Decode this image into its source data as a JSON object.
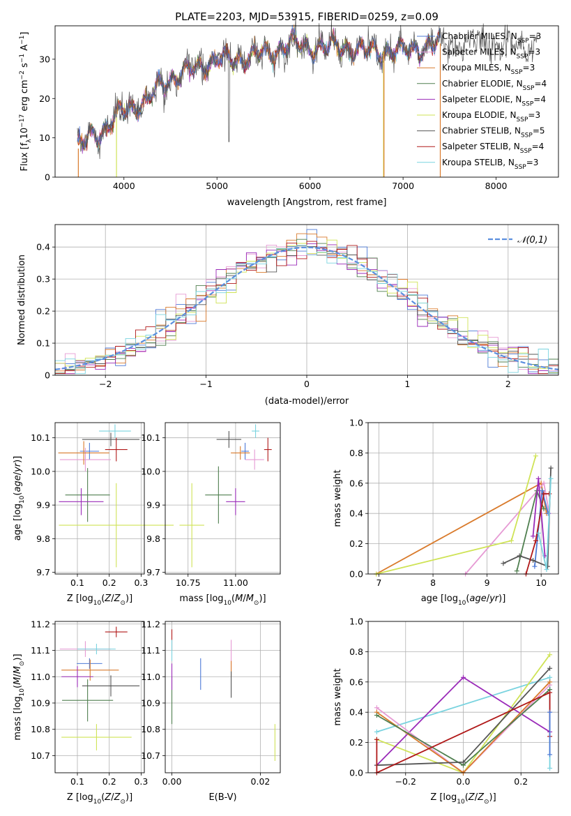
{
  "figure": {
    "title": "PLATE=2203, MJD=53915, FIBERID=0259, z=0.09"
  },
  "chart_data": [
    {
      "id": "spectrum",
      "type": "line",
      "xlabel": "wavelength [Angstrom, rest frame]",
      "ylabel": "Flux [f_λ 10^-17 erg cm^-2 s^-1 A^-1]",
      "xlim": [
        3260,
        8670
      ],
      "ylim": [
        0,
        38.5
      ],
      "xticks": [
        4000,
        5000,
        6000,
        7000,
        8000
      ],
      "yticks": [
        0,
        10,
        20,
        30
      ],
      "legend_position": "upper-right",
      "series": [
        {
          "name": "Chabrier MILES, N_SSP=3",
          "color": "#4c79d6"
        },
        {
          "name": "Salpeter MILES, N_SSP=3",
          "color": "#e69ad4"
        },
        {
          "name": "Kroupa MILES, N_SSP=3",
          "color": "#d97a2b"
        },
        {
          "name": "Chabrier ELODIE, N_SSP=4",
          "color": "#4f7f4f"
        },
        {
          "name": "Salpeter ELODIE, N_SSP=4",
          "color": "#9a2ab8"
        },
        {
          "name": "Kroupa ELODIE, N_SSP=3",
          "color": "#cfe356"
        },
        {
          "name": "Chabrier STELIB, N_SSP=5",
          "color": "#555555"
        },
        {
          "name": "Salpeter STELIB, N_SSP=4",
          "color": "#b01818"
        },
        {
          "name": "Kroupa STELIB, N_SSP=3",
          "color": "#79d3df"
        }
      ],
      "continuum": {
        "x": [
          3500,
          3650,
          3800,
          3950,
          4050,
          4250,
          4400,
          4600,
          4800,
          5000,
          5200,
          5400,
          5600,
          5800,
          6000,
          6200,
          6400,
          6600,
          6800,
          7000,
          7200,
          7400
        ],
        "y": [
          7,
          11,
          12,
          16,
          18,
          19,
          24,
          26,
          28,
          30,
          30,
          31,
          32,
          34,
          33,
          33,
          33,
          32,
          32,
          32,
          33,
          34
        ]
      },
      "data_extent": [
        3500,
        8450
      ],
      "model_extent": [
        3500,
        7400
      ]
    },
    {
      "id": "residuals",
      "type": "histogram",
      "xlabel": "(data-model)/error",
      "ylabel": "Normed distribution",
      "xlim": [
        -2.5,
        2.5
      ],
      "ylim": [
        0,
        0.47
      ],
      "xticks": [
        -2,
        -1,
        0,
        1,
        2
      ],
      "yticks": [
        0,
        0.1,
        0.2,
        0.3,
        0.4
      ],
      "legend_position": "upper-right",
      "reference_curve": {
        "name": "𝒩(0,1)",
        "mean": 0,
        "sigma": 1,
        "color": "#5b8fde"
      },
      "bin_width": 0.1
    },
    {
      "id": "age-vs-Z",
      "type": "errorbar",
      "xlabel": "Z [log10(Z/Z⊙)]",
      "ylabel": "age [log10(age/yr)]",
      "xlim": [
        0.03,
        0.31
      ],
      "ylim": [
        9.695,
        10.145
      ],
      "xticks": [
        0.1,
        0.2,
        0.3
      ],
      "yticks": [
        9.7,
        9.8,
        9.9,
        10.0,
        10.1
      ],
      "xticklabels": [
        "0.1",
        "0.2",
        "0.3"
      ],
      "yticklabels": [
        "9.7",
        "9.8",
        "9.9",
        "10.0",
        "10.1"
      ],
      "points": [
        {
          "series": "Chabrier MILES",
          "x": 0.138,
          "y": 10.06,
          "xerr": 0.03,
          "yerr": 0.025
        },
        {
          "series": "Salpeter MILES",
          "x": 0.125,
          "y": 10.035,
          "xerr": 0.08,
          "yerr": 0.035
        },
        {
          "series": "Kroupa MILES",
          "x": 0.12,
          "y": 10.055,
          "xerr": 0.08,
          "yerr": 0.035
        },
        {
          "series": "Chabrier ELODIE",
          "x": 0.132,
          "y": 9.93,
          "xerr": 0.07,
          "yerr": 0.08
        },
        {
          "series": "Salpeter ELODIE",
          "x": 0.112,
          "y": 9.91,
          "xerr": 0.07,
          "yerr": 0.04
        },
        {
          "series": "Kroupa ELODIE",
          "x": 0.222,
          "y": 9.84,
          "xerr": 0.18,
          "yerr": 0.125
        },
        {
          "series": "Chabrier STELIB",
          "x": 0.205,
          "y": 10.095,
          "xerr": 0.09,
          "yerr": 0.02
        },
        {
          "series": "Salpeter STELIB",
          "x": 0.222,
          "y": 10.065,
          "xerr": 0.035,
          "yerr": 0.035
        },
        {
          "series": "Kroupa STELIB",
          "x": 0.218,
          "y": 10.12,
          "xerr": 0.05,
          "yerr": 0.02
        }
      ]
    },
    {
      "id": "age-vs-mass",
      "type": "errorbar",
      "xlabel": "mass [log10(M/M⊙)]",
      "ylabel": "",
      "xlim": [
        10.63,
        11.235
      ],
      "ylim": [
        9.695,
        10.145
      ],
      "xticks": [
        10.75,
        11.0
      ],
      "yticks": [
        9.7,
        9.8,
        9.9,
        10.0,
        10.1
      ],
      "xticklabels": [
        "10.75",
        "11.00"
      ],
      "yticklabels": [
        "9.7",
        "9.8",
        "9.9",
        "10.0",
        "10.1"
      ],
      "points": [
        {
          "series": "Chabrier MILES",
          "x": 11.05,
          "y": 10.06,
          "xerr": 0.02,
          "yerr": 0.025
        },
        {
          "series": "Salpeter MILES",
          "x": 11.1,
          "y": 10.035,
          "xerr": 0.05,
          "yerr": 0.03
        },
        {
          "series": "Kroupa MILES",
          "x": 11.025,
          "y": 10.055,
          "xerr": 0.05,
          "yerr": 0.02
        },
        {
          "series": "Chabrier ELODIE",
          "x": 10.91,
          "y": 9.93,
          "xerr": 0.07,
          "yerr": 0.085
        },
        {
          "series": "Salpeter ELODIE",
          "x": 11.0,
          "y": 9.91,
          "xerr": 0.05,
          "yerr": 0.04
        },
        {
          "series": "Kroupa ELODIE",
          "x": 10.77,
          "y": 9.84,
          "xerr": 0.065,
          "yerr": 0.125
        },
        {
          "series": "Chabrier STELIB",
          "x": 10.965,
          "y": 10.095,
          "xerr": 0.065,
          "yerr": 0.025
        },
        {
          "series": "Salpeter STELIB",
          "x": 11.17,
          "y": 10.065,
          "xerr": 0.02,
          "yerr": 0.035
        },
        {
          "series": "Kroupa STELIB",
          "x": 11.105,
          "y": 10.12,
          "xerr": 0.02,
          "yerr": 0.02
        }
      ]
    },
    {
      "id": "weight-vs-age",
      "type": "line",
      "xlabel": "age [log10(age/yr)]",
      "ylabel": "mass weight",
      "xlim": [
        6.8,
        10.32
      ],
      "ylim": [
        0,
        1
      ],
      "xticks": [
        7,
        8,
        9,
        10
      ],
      "yticks": [
        0,
        0.2,
        0.4,
        0.6,
        0.8,
        1.0
      ],
      "xticklabels": [
        "7",
        "8",
        "9",
        "10"
      ],
      "yticklabels": [
        "0.0",
        "0.2",
        "0.4",
        "0.6",
        "0.8",
        "1.0"
      ],
      "lines": [
        {
          "series": "Kroupa MILES",
          "x": [
            6.95,
            10.0,
            10.1
          ],
          "y": [
            0.0,
            0.6,
            0.4
          ]
        },
        {
          "series": "Salpeter MILES",
          "x": [
            8.6,
            10.05,
            10.15
          ],
          "y": [
            0.0,
            0.6,
            0.4
          ]
        },
        {
          "series": "Chabrier MILES",
          "x": [
            9.88,
            10.02,
            10.13
          ],
          "y": [
            0.05,
            0.55,
            0.4
          ]
        },
        {
          "series": "Kroupa ELODIE",
          "x": [
            6.95,
            9.45,
            9.9
          ],
          "y": [
            0.0,
            0.22,
            0.78
          ]
        },
        {
          "series": "Chabrier ELODIE",
          "x": [
            9.55,
            9.92,
            10.05
          ],
          "y": [
            0.02,
            0.55,
            0.43
          ]
        },
        {
          "series": "Salpeter ELODIE",
          "x": [
            9.85,
            9.95,
            10.07
          ],
          "y": [
            0.25,
            0.63,
            0.12
          ]
        },
        {
          "series": "Chabrier STELIB",
          "x": [
            9.3,
            9.6,
            9.85,
            10.12,
            10.18
          ],
          "y": [
            0.07,
            0.12,
            0.09,
            0.05,
            0.7
          ]
        },
        {
          "series": "Salpeter STELIB",
          "x": [
            9.72,
            9.9,
            10.05,
            10.15
          ],
          "y": [
            0.0,
            0.22,
            0.53,
            0.53
          ]
        },
        {
          "series": "Kroupa STELIB",
          "x": [
            9.95,
            10.1,
            10.18
          ],
          "y": [
            0.27,
            0.03,
            0.63
          ]
        }
      ]
    },
    {
      "id": "mass-vs-Z",
      "type": "errorbar",
      "xlabel": "Z [log10(Z/Z⊙)]",
      "ylabel": "mass [log10(M/M⊙)]",
      "xlim": [
        0.03,
        0.31
      ],
      "ylim": [
        10.635,
        11.21
      ],
      "xticks": [
        0.1,
        0.2,
        0.3
      ],
      "yticks": [
        10.7,
        10.8,
        10.9,
        11.0,
        11.1,
        11.2
      ],
      "xticklabels": [
        "0.1",
        "0.2",
        "0.3"
      ],
      "yticklabels": [
        "10.7",
        "10.8",
        "10.9",
        "11.0",
        "11.1",
        "11.2"
      ],
      "points": [
        {
          "series": "Chabrier MILES",
          "x": 0.138,
          "y": 11.05,
          "xerr": 0.04,
          "yerr": 0.02
        },
        {
          "series": "Salpeter MILES",
          "x": 0.125,
          "y": 11.105,
          "xerr": 0.08,
          "yerr": 0.03
        },
        {
          "series": "Kroupa MILES",
          "x": 0.14,
          "y": 11.025,
          "xerr": 0.09,
          "yerr": 0.04
        },
        {
          "series": "Chabrier ELODIE",
          "x": 0.132,
          "y": 10.91,
          "xerr": 0.08,
          "yerr": 0.08
        },
        {
          "series": "Salpeter ELODIE",
          "x": 0.1,
          "y": 11.0,
          "xerr": 0.05,
          "yerr": 0.04
        },
        {
          "series": "Kroupa ELODIE",
          "x": 0.16,
          "y": 10.77,
          "xerr": 0.11,
          "yerr": 0.05
        },
        {
          "series": "Chabrier STELIB",
          "x": 0.205,
          "y": 10.965,
          "xerr": 0.09,
          "yerr": 0.04
        },
        {
          "series": "Salpeter STELIB",
          "x": 0.222,
          "y": 11.17,
          "xerr": 0.035,
          "yerr": 0.02
        },
        {
          "series": "Kroupa STELIB",
          "x": 0.16,
          "y": 11.105,
          "xerr": 0.06,
          "yerr": 0.02
        }
      ]
    },
    {
      "id": "mass-vs-ebv",
      "type": "errorbar",
      "xlabel": "E(B-V)",
      "ylabel": "",
      "xlim": [
        -0.0015,
        0.0245
      ],
      "ylim": [
        10.635,
        11.21
      ],
      "xticks": [
        0.0,
        0.02
      ],
      "yticks": [
        10.7,
        10.8,
        10.9,
        11.0,
        11.1,
        11.2
      ],
      "xticklabels": [
        "0.00",
        "0.02"
      ],
      "yticklabels": [
        "10.7",
        "10.8",
        "10.9",
        "11.0",
        "11.1",
        "11.2"
      ],
      "points": [
        {
          "series": "Chabrier MILES",
          "x": 0.0065,
          "y": 11.01,
          "xerr": 0,
          "yerr": 0.06
        },
        {
          "series": "Salpeter MILES",
          "x": 0.0134,
          "y": 11.08,
          "xerr": 0,
          "yerr": 0.06
        },
        {
          "series": "Kroupa MILES",
          "x": 0.0134,
          "y": 11.03,
          "xerr": 0,
          "yerr": 0.03
        },
        {
          "series": "Chabrier ELODIE",
          "x": 0.0,
          "y": 10.91,
          "xerr": 0,
          "yerr": 0.09
        },
        {
          "series": "Salpeter ELODIE",
          "x": 0.0,
          "y": 11.0,
          "xerr": 0,
          "yerr": 0.05
        },
        {
          "series": "Kroupa ELODIE",
          "x": 0.0233,
          "y": 10.75,
          "xerr": 0,
          "yerr": 0.07
        },
        {
          "series": "Chabrier STELIB",
          "x": 0.0134,
          "y": 10.97,
          "xerr": 0,
          "yerr": 0.05
        },
        {
          "series": "Salpeter STELIB",
          "x": 0.0,
          "y": 11.14,
          "xerr": 0,
          "yerr": 0.04
        },
        {
          "series": "Kroupa STELIB",
          "x": 0.0,
          "y": 11.1,
          "xerr": 0,
          "yerr": 0.04
        }
      ]
    },
    {
      "id": "weight-vs-Z",
      "type": "line",
      "xlabel": "Z [log10(Z/Z⊙)]",
      "ylabel": "mass weight",
      "xlim": [
        -0.33,
        0.33
      ],
      "ylim": [
        0,
        1
      ],
      "xticks": [
        -0.2,
        0.0,
        0.2
      ],
      "yticks": [
        0,
        0.2,
        0.4,
        0.6,
        0.8,
        1.0
      ],
      "xticklabels": [
        "−0.2",
        "0.0",
        "0.2"
      ],
      "yticklabels": [
        "0.0",
        "0.2",
        "0.4",
        "0.6",
        "0.8",
        "1.0"
      ],
      "lines": [
        {
          "series": "Kroupa STELIB",
          "x": [
            -0.3,
            0.3,
            0.3
          ],
          "y": [
            0.27,
            0.63,
            0.03
          ]
        },
        {
          "series": "Kroupa ELODIE",
          "x": [
            -0.3,
            0.0,
            0.3
          ],
          "y": [
            0.22,
            0.0,
            0.78
          ]
        },
        {
          "series": "Salpeter ELODIE",
          "x": [
            -0.3,
            0.0,
            0.3
          ],
          "y": [
            0.05,
            0.63,
            0.27
          ]
        },
        {
          "series": "Salpeter MILES",
          "x": [
            -0.3,
            0.0,
            0.3
          ],
          "y": [
            0.43,
            0.0,
            0.58
          ]
        },
        {
          "series": "Kroupa MILES",
          "x": [
            -0.3,
            0.0,
            0.3
          ],
          "y": [
            0.4,
            0.0,
            0.6
          ]
        },
        {
          "series": "Chabrier ELODIE",
          "x": [
            -0.3,
            0.0,
            0.3
          ],
          "y": [
            0.38,
            0.05,
            0.55
          ]
        },
        {
          "series": "Chabrier STELIB",
          "x": [
            -0.3,
            0.0,
            0.3
          ],
          "y": [
            0.05,
            0.07,
            0.69
          ]
        },
        {
          "series": "Salpeter STELIB",
          "x": [
            -0.3,
            -0.3,
            0.3,
            0.3
          ],
          "y": [
            0.22,
            0.0,
            0.53,
            0.24
          ]
        },
        {
          "series": "Chabrier MILES",
          "x": [
            0.3,
            0.3
          ],
          "y": [
            0.12,
            0.4
          ]
        }
      ]
    }
  ]
}
